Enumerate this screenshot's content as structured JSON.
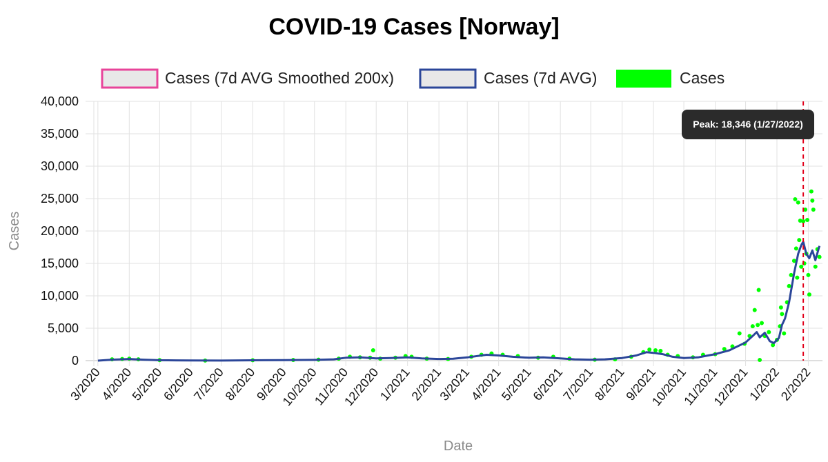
{
  "chart_data": {
    "type": "line",
    "title": "COVID-19 Cases [Norway]",
    "xlabel": "Date",
    "ylabel": "Cases",
    "ylim": [
      0,
      40000
    ],
    "y_ticks": [
      0,
      5000,
      10000,
      15000,
      20000,
      25000,
      30000,
      35000,
      40000
    ],
    "y_tick_labels": [
      "0",
      "5,000",
      "10,000",
      "15,000",
      "20,000",
      "25,000",
      "30,000",
      "35,000",
      "40,000"
    ],
    "xlim": [
      "2020-02-26",
      "2022-02-15"
    ],
    "x_ticks": [
      "2020-03-01",
      "2020-04-01",
      "2020-05-01",
      "2020-06-01",
      "2020-07-01",
      "2020-08-01",
      "2020-09-01",
      "2020-10-01",
      "2020-11-01",
      "2020-12-01",
      "2021-01-01",
      "2021-02-01",
      "2021-03-01",
      "2021-04-01",
      "2021-05-01",
      "2021-06-01",
      "2021-07-01",
      "2021-08-01",
      "2021-09-01",
      "2021-10-01",
      "2021-11-01",
      "2021-12-01",
      "2022-01-01",
      "2022-02-01"
    ],
    "x_tick_labels": [
      "3/2020",
      "4/2020",
      "5/2020",
      "6/2020",
      "7/2020",
      "8/2020",
      "9/2020",
      "10/2020",
      "11/2020",
      "12/2020",
      "1/2021",
      "2/2021",
      "3/2021",
      "4/2021",
      "5/2021",
      "6/2021",
      "7/2021",
      "8/2021",
      "9/2021",
      "10/2021",
      "11/2021",
      "12/2021",
      "1/2022",
      "2/2022"
    ],
    "grid": true,
    "legend_position": "top",
    "legend": [
      {
        "name": "Cases (7d AVG Smoothed 200x)",
        "style": "outline",
        "color": "#e8449a"
      },
      {
        "name": "Cases (7d AVG)",
        "style": "outline",
        "color": "#2b4699"
      },
      {
        "name": "Cases",
        "style": "filled",
        "color": "#00ff00"
      }
    ],
    "series": [
      {
        "name": "Cases (7d AVG)",
        "color": "#2b4699",
        "points": [
          [
            "2020-03-01",
            0
          ],
          [
            "2020-03-15",
            150
          ],
          [
            "2020-04-01",
            250
          ],
          [
            "2020-04-15",
            150
          ],
          [
            "2020-05-01",
            60
          ],
          [
            "2020-06-01",
            20
          ],
          [
            "2020-07-01",
            15
          ],
          [
            "2020-08-01",
            50
          ],
          [
            "2020-09-01",
            80
          ],
          [
            "2020-10-01",
            120
          ],
          [
            "2020-10-20",
            200
          ],
          [
            "2020-11-01",
            450
          ],
          [
            "2020-11-15",
            500
          ],
          [
            "2020-12-01",
            350
          ],
          [
            "2020-12-15",
            400
          ],
          [
            "2021-01-01",
            500
          ],
          [
            "2021-01-15",
            350
          ],
          [
            "2021-02-01",
            250
          ],
          [
            "2021-02-15",
            300
          ],
          [
            "2021-03-01",
            500
          ],
          [
            "2021-03-20",
            900
          ],
          [
            "2021-04-01",
            800
          ],
          [
            "2021-04-15",
            600
          ],
          [
            "2021-05-01",
            450
          ],
          [
            "2021-05-15",
            500
          ],
          [
            "2021-06-01",
            350
          ],
          [
            "2021-06-15",
            200
          ],
          [
            "2021-07-01",
            150
          ],
          [
            "2021-07-15",
            200
          ],
          [
            "2021-08-01",
            400
          ],
          [
            "2021-08-15",
            800
          ],
          [
            "2021-08-25",
            1300
          ],
          [
            "2021-09-01",
            1200
          ],
          [
            "2021-09-10",
            1000
          ],
          [
            "2021-09-20",
            600
          ],
          [
            "2021-10-01",
            400
          ],
          [
            "2021-10-15",
            500
          ],
          [
            "2021-10-25",
            800
          ],
          [
            "2021-11-01",
            1000
          ],
          [
            "2021-11-15",
            1600
          ],
          [
            "2021-12-01",
            2800
          ],
          [
            "2021-12-08",
            3800
          ],
          [
            "2021-12-12",
            4400
          ],
          [
            "2021-12-15",
            3600
          ],
          [
            "2021-12-20",
            4300
          ],
          [
            "2021-12-25",
            3000
          ],
          [
            "2021-12-29",
            2700
          ],
          [
            "2022-01-03",
            3500
          ],
          [
            "2022-01-06",
            5500
          ],
          [
            "2022-01-09",
            6500
          ],
          [
            "2022-01-13",
            9000
          ],
          [
            "2022-01-18",
            13500
          ],
          [
            "2022-01-22",
            16500
          ],
          [
            "2022-01-25",
            17800
          ],
          [
            "2022-01-27",
            18346
          ],
          [
            "2022-01-30",
            16500
          ],
          [
            "2022-02-02",
            15800
          ],
          [
            "2022-02-05",
            17000
          ],
          [
            "2022-02-08",
            15500
          ],
          [
            "2022-02-12",
            17700
          ]
        ]
      },
      {
        "name": "Cases",
        "color": "#00ff00",
        "points": [
          [
            "2020-03-15",
            200
          ],
          [
            "2020-03-25",
            250
          ],
          [
            "2020-04-01",
            300
          ],
          [
            "2020-04-10",
            200
          ],
          [
            "2020-05-01",
            80
          ],
          [
            "2020-06-15",
            10
          ],
          [
            "2020-08-01",
            60
          ],
          [
            "2020-09-10",
            100
          ],
          [
            "2020-10-05",
            150
          ],
          [
            "2020-10-25",
            300
          ],
          [
            "2020-11-05",
            600
          ],
          [
            "2020-11-15",
            500
          ],
          [
            "2020-11-25",
            450
          ],
          [
            "2020-11-28",
            1600
          ],
          [
            "2020-12-05",
            300
          ],
          [
            "2020-12-20",
            450
          ],
          [
            "2020-12-30",
            700
          ],
          [
            "2021-01-05",
            600
          ],
          [
            "2021-01-20",
            300
          ],
          [
            "2021-02-10",
            250
          ],
          [
            "2021-03-05",
            600
          ],
          [
            "2021-03-15",
            900
          ],
          [
            "2021-03-25",
            1100
          ],
          [
            "2021-04-05",
            900
          ],
          [
            "2021-04-20",
            700
          ],
          [
            "2021-05-10",
            450
          ],
          [
            "2021-05-25",
            600
          ],
          [
            "2021-06-10",
            300
          ],
          [
            "2021-07-05",
            150
          ],
          [
            "2021-07-25",
            200
          ],
          [
            "2021-08-10",
            600
          ],
          [
            "2021-08-22",
            1300
          ],
          [
            "2021-08-28",
            1700
          ],
          [
            "2021-09-03",
            1600
          ],
          [
            "2021-09-08",
            1500
          ],
          [
            "2021-09-15",
            900
          ],
          [
            "2021-09-25",
            700
          ],
          [
            "2021-10-10",
            500
          ],
          [
            "2021-10-20",
            900
          ],
          [
            "2021-11-01",
            1000
          ],
          [
            "2021-11-10",
            1800
          ],
          [
            "2021-11-18",
            2200
          ],
          [
            "2021-11-25",
            4200
          ],
          [
            "2021-11-30",
            2600
          ],
          [
            "2021-12-05",
            3800
          ],
          [
            "2021-12-08",
            5300
          ],
          [
            "2021-12-10",
            7800
          ],
          [
            "2021-12-13",
            5500
          ],
          [
            "2021-12-14",
            10900
          ],
          [
            "2021-12-15",
            100
          ],
          [
            "2021-12-17",
            5800
          ],
          [
            "2021-12-20",
            3800
          ],
          [
            "2021-12-24",
            4400
          ],
          [
            "2021-12-28",
            2400
          ],
          [
            "2022-01-01",
            3200
          ],
          [
            "2022-01-04",
            5300
          ],
          [
            "2022-01-05",
            8200
          ],
          [
            "2022-01-06",
            7200
          ],
          [
            "2022-01-08",
            4200
          ],
          [
            "2022-01-11",
            9000
          ],
          [
            "2022-01-13",
            11500
          ],
          [
            "2022-01-15",
            13200
          ],
          [
            "2022-01-18",
            15400
          ],
          [
            "2022-01-19",
            24900
          ],
          [
            "2022-01-20",
            17300
          ],
          [
            "2022-01-21",
            12800
          ],
          [
            "2022-01-22",
            24400
          ],
          [
            "2022-01-23",
            18600
          ],
          [
            "2022-01-24",
            21600
          ],
          [
            "2022-01-25",
            14500
          ],
          [
            "2022-01-27",
            21500
          ],
          [
            "2022-01-28",
            15000
          ],
          [
            "2022-01-29",
            23300
          ],
          [
            "2022-01-30",
            16500
          ],
          [
            "2022-01-31",
            21700
          ],
          [
            "2022-02-01",
            13200
          ],
          [
            "2022-02-02",
            10200
          ],
          [
            "2022-02-04",
            26100
          ],
          [
            "2022-02-05",
            24700
          ],
          [
            "2022-02-06",
            23300
          ],
          [
            "2022-02-08",
            14500
          ],
          [
            "2022-02-10",
            17200
          ],
          [
            "2022-02-12",
            16000
          ]
        ]
      }
    ],
    "annotations": [
      {
        "type": "vertical-line",
        "x": "2022-01-27",
        "color": "#e2001a",
        "style": "dashed"
      },
      {
        "type": "tooltip",
        "text": "Peak: 18,346 (1/27/2022)"
      }
    ]
  }
}
